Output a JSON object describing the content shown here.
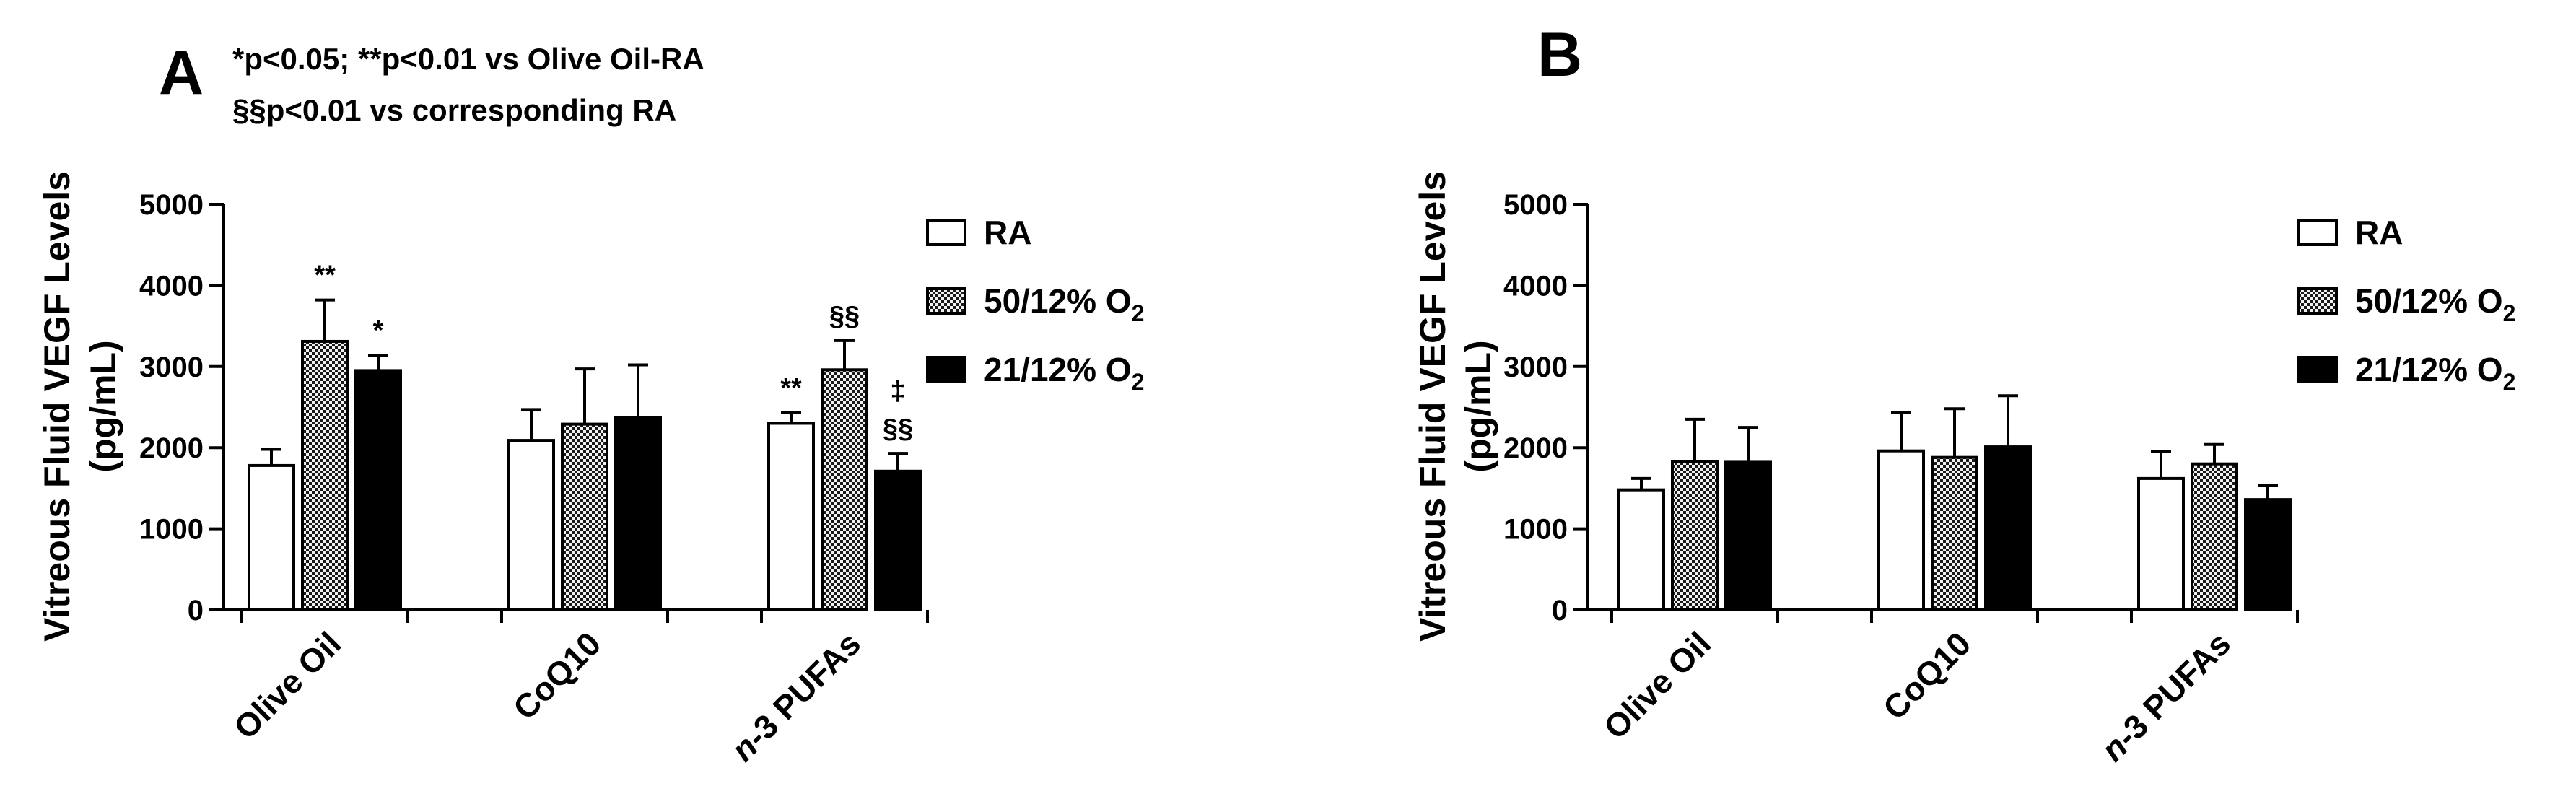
{
  "colors": {
    "ink": "#000000",
    "ra_fill": "#ffffff",
    "hyper_fill": "#8a8a8a",
    "normo_fill": "#000000"
  },
  "legend": {
    "items": [
      {
        "key": "ra",
        "label": "RA",
        "sub": ""
      },
      {
        "key": "hyper",
        "label": "50/12% O",
        "sub": "2"
      },
      {
        "key": "normo",
        "label": "21/12% O",
        "sub": "2"
      }
    ]
  },
  "annotations_note": {
    "line1": "*p<0.05; **p<0.01 vs Olive  Oil-RA",
    "line2": "§§p<0.01 vs corresponding RA"
  },
  "chart_data": [
    {
      "panel": "A",
      "type": "bar",
      "ylabel_line1": "Vitreous Fluid VEGF Levels",
      "ylabel_line2": "(pg/mL)",
      "ylim": [
        0,
        5000
      ],
      "yticks": [
        "0",
        "1000",
        "2000",
        "3000",
        "4000",
        "5000"
      ],
      "categories": [
        {
          "pre": "",
          "italic": "",
          "rest": "Olive Oil"
        },
        {
          "pre": "",
          "italic": "",
          "rest": "CoQ10"
        },
        {
          "pre": "",
          "italic": "n",
          "rest": "-3 PUFAs"
        }
      ],
      "series": [
        {
          "key": "ra",
          "name": "RA",
          "values": [
            1780,
            2090,
            2300
          ],
          "errors": [
            200,
            380,
            130
          ]
        },
        {
          "key": "hyper",
          "name": "50/12% O2",
          "values": [
            3310,
            2290,
            2960
          ],
          "errors": [
            510,
            680,
            360
          ]
        },
        {
          "key": "normo",
          "name": "21/12% O2",
          "values": [
            2950,
            2370,
            1710
          ],
          "errors": [
            190,
            650,
            220
          ]
        }
      ],
      "marks": [
        {
          "cat": 0,
          "series": 1,
          "lines": [
            "**"
          ]
        },
        {
          "cat": 0,
          "series": 2,
          "lines": [
            "*"
          ]
        },
        {
          "cat": 2,
          "series": 0,
          "lines": [
            "**"
          ]
        },
        {
          "cat": 2,
          "series": 1,
          "lines": [
            "§§"
          ]
        },
        {
          "cat": 2,
          "series": 2,
          "lines": [
            "‡",
            "§§"
          ]
        }
      ]
    },
    {
      "panel": "B",
      "type": "bar",
      "ylabel_line1": "Vitreous Fluid VEGF Levels",
      "ylabel_line2": "(pg/mL)",
      "ylim": [
        0,
        5000
      ],
      "yticks": [
        "0",
        "1000",
        "2000",
        "3000",
        "4000",
        "5000"
      ],
      "categories": [
        {
          "pre": "",
          "italic": "",
          "rest": "Olive Oil"
        },
        {
          "pre": "",
          "italic": "",
          "rest": "CoQ10"
        },
        {
          "pre": "",
          "italic": "n",
          "rest": "-3 PUFAs"
        }
      ],
      "series": [
        {
          "key": "ra",
          "name": "RA",
          "values": [
            1480,
            1960,
            1620
          ],
          "errors": [
            140,
            470,
            330
          ]
        },
        {
          "key": "hyper",
          "name": "50/12% O2",
          "values": [
            1830,
            1880,
            1800
          ],
          "errors": [
            520,
            600,
            240
          ]
        },
        {
          "key": "normo",
          "name": "21/12% O2",
          "values": [
            1820,
            2010,
            1360
          ],
          "errors": [
            430,
            630,
            170
          ]
        }
      ],
      "marks": []
    }
  ]
}
